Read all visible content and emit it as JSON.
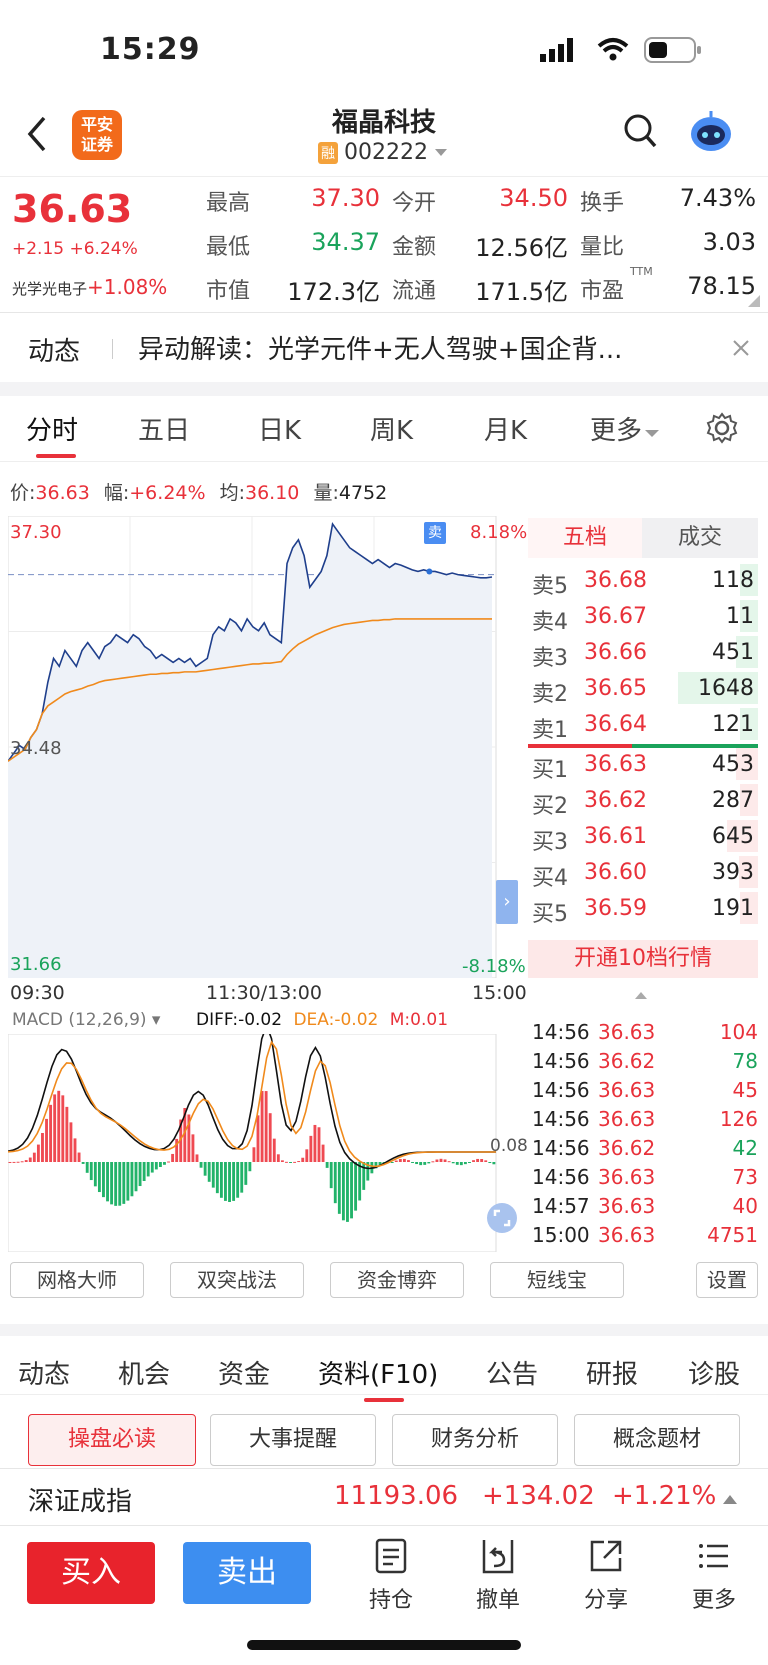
{
  "status": {
    "time": "15:29"
  },
  "header": {
    "logo_line1": "平安",
    "logo_line2": "证券",
    "title": "福晶科技",
    "margin_badge": "融",
    "code": "002222"
  },
  "quote": {
    "price": "36.63",
    "change": "+2.15 +6.24%",
    "sector_name": "光学光电子",
    "sector_change": "+1.08%",
    "cells": [
      {
        "label": "最高",
        "value": "37.30"
      },
      {
        "label": "今开",
        "value": "34.50"
      },
      {
        "label": "换手",
        "value": "7.43%"
      },
      {
        "label": "最低",
        "value": "34.37"
      },
      {
        "label": "金额",
        "value": "12.56亿"
      },
      {
        "label": "量比",
        "value": "3.03"
      },
      {
        "label": "市值",
        "value": "172.3亿"
      },
      {
        "label": "流通",
        "value": "171.5亿"
      },
      {
        "label": "市盈",
        "value": "78.15"
      }
    ],
    "pe_sup": "TTM"
  },
  "news": {
    "tag": "动态",
    "text": "异动解读：光学元件+无人驾驶+国企背..."
  },
  "chart_tabs": [
    "分时",
    "五日",
    "日K",
    "周K",
    "月K",
    "更多"
  ],
  "chart_info": {
    "price_label": "价:",
    "price": "36.63",
    "amp_label": "幅:",
    "amp": "+6.24%",
    "avg_label": "均:",
    "avg": "36.10",
    "vol_label": "量:",
    "vol": "4752"
  },
  "chart_data": {
    "type": "line",
    "title": "",
    "y_top_label": "37.30",
    "y_mid_label": "34.48",
    "y_bottom_label": "31.66",
    "pct_top_label": "8.18%",
    "pct_bottom_label": "-8.18%",
    "x_labels": [
      "09:30",
      "11:30/13:00",
      "15:00"
    ],
    "sell_marker": "卖",
    "ylim": [
      31.66,
      37.3
    ],
    "price_series": [
      34.3,
      34.4,
      34.5,
      34.45,
      34.6,
      34.7,
      34.9,
      35.3,
      35.6,
      35.5,
      35.7,
      35.6,
      35.5,
      35.7,
      35.8,
      35.7,
      35.6,
      35.75,
      35.8,
      35.9,
      35.85,
      35.8,
      35.9,
      35.85,
      35.75,
      35.7,
      35.6,
      35.65,
      35.6,
      35.55,
      35.6,
      35.55,
      35.6,
      35.5,
      35.55,
      35.6,
      35.9,
      36.0,
      35.95,
      36.1,
      36.05,
      35.95,
      36.1,
      36.0,
      35.95,
      36.05,
      35.9,
      35.85,
      35.8,
      36.8,
      37.0,
      37.1,
      36.9,
      36.5,
      36.6,
      36.7,
      36.9,
      37.3,
      37.2,
      37.1,
      37.0,
      36.95,
      36.9,
      36.85,
      36.8,
      36.85,
      36.8,
      36.75,
      36.8,
      36.78,
      36.75,
      36.72,
      36.7,
      36.72,
      36.7,
      36.7,
      36.68,
      36.66,
      36.68,
      36.66,
      36.65,
      36.64,
      36.63,
      36.62,
      36.62,
      36.63
    ],
    "avg_series": [
      34.3,
      34.35,
      34.4,
      34.45,
      34.6,
      34.7,
      34.9,
      35.0,
      35.05,
      35.1,
      35.15,
      35.18,
      35.2,
      35.22,
      35.25,
      35.27,
      35.3,
      35.32,
      35.33,
      35.34,
      35.35,
      35.36,
      35.37,
      35.38,
      35.39,
      35.4,
      35.4,
      35.41,
      35.41,
      35.42,
      35.42,
      35.43,
      35.43,
      35.43,
      35.44,
      35.45,
      35.46,
      35.47,
      35.48,
      35.49,
      35.5,
      35.51,
      35.52,
      35.53,
      35.53,
      35.54,
      35.54,
      35.55,
      35.56,
      35.65,
      35.72,
      35.78,
      35.82,
      35.86,
      35.9,
      35.93,
      35.96,
      35.99,
      36.01,
      36.03,
      36.04,
      36.05,
      36.06,
      36.07,
      36.08,
      36.08,
      36.09,
      36.09,
      36.1,
      36.1,
      36.1,
      36.1,
      36.1,
      36.1,
      36.1,
      36.1,
      36.1,
      36.1,
      36.1,
      36.1,
      36.1,
      36.1,
      36.1,
      36.1,
      36.1,
      36.1
    ],
    "macd": {
      "name": "MACD (12,26,9)",
      "diff": "DIFF:-0.02",
      "dea": "DEA:-0.02",
      "m": "M:0.01",
      "level_label": "0.08"
    }
  },
  "orderbook": {
    "tab_5": "五档",
    "tab_trades": "成交",
    "asks": [
      {
        "label": "卖5",
        "price": "36.68",
        "vol": "118"
      },
      {
        "label": "卖4",
        "price": "36.67",
        "vol": "11"
      },
      {
        "label": "卖3",
        "price": "36.66",
        "vol": "451"
      },
      {
        "label": "卖2",
        "price": "36.65",
        "vol": "1648"
      },
      {
        "label": "卖1",
        "price": "36.64",
        "vol": "121"
      }
    ],
    "bids": [
      {
        "label": "买1",
        "price": "36.63",
        "vol": "453"
      },
      {
        "label": "买2",
        "price": "36.62",
        "vol": "287"
      },
      {
        "label": "买3",
        "price": "36.61",
        "vol": "645"
      },
      {
        "label": "买4",
        "price": "36.60",
        "vol": "393"
      },
      {
        "label": "买5",
        "price": "36.59",
        "vol": "191"
      }
    ],
    "open10": "开通10档行情"
  },
  "ticks": [
    {
      "time": "14:56",
      "price": "36.63",
      "vol": "104",
      "dir": "up"
    },
    {
      "time": "14:56",
      "price": "36.62",
      "vol": "78",
      "dir": "down"
    },
    {
      "time": "14:56",
      "price": "36.63",
      "vol": "45",
      "dir": "up"
    },
    {
      "time": "14:56",
      "price": "36.63",
      "vol": "126",
      "dir": "up"
    },
    {
      "time": "14:56",
      "price": "36.62",
      "vol": "42",
      "dir": "down"
    },
    {
      "time": "14:56",
      "price": "36.63",
      "vol": "73",
      "dir": "up"
    },
    {
      "time": "14:57",
      "price": "36.63",
      "vol": "40",
      "dir": "up"
    },
    {
      "time": "15:00",
      "price": "36.63",
      "vol": "4751",
      "dir": "up"
    }
  ],
  "tools": [
    "网格大师",
    "双突战法",
    "资金博弈",
    "短线宝",
    "设置"
  ],
  "info_tabs": [
    "动态",
    "机会",
    "资金",
    "资料(F10)",
    "公告",
    "研报",
    "诊股"
  ],
  "sub_tabs": [
    "操盘必读",
    "大事提醒",
    "财务分析",
    "概念题材"
  ],
  "index_bar": {
    "name": "深证成指",
    "value": "11193.06",
    "change": "+134.02",
    "pct": "+1.21%"
  },
  "bottom": {
    "buy": "买入",
    "sell": "卖出",
    "nav": [
      "持仓",
      "撤单",
      "分享",
      "更多"
    ]
  },
  "colors": {
    "red": "#e8313a",
    "green": "#1aa35b",
    "blue": "#3d8ef0",
    "price_line": "#1f3f8c",
    "avg_line": "#f08a1c"
  }
}
